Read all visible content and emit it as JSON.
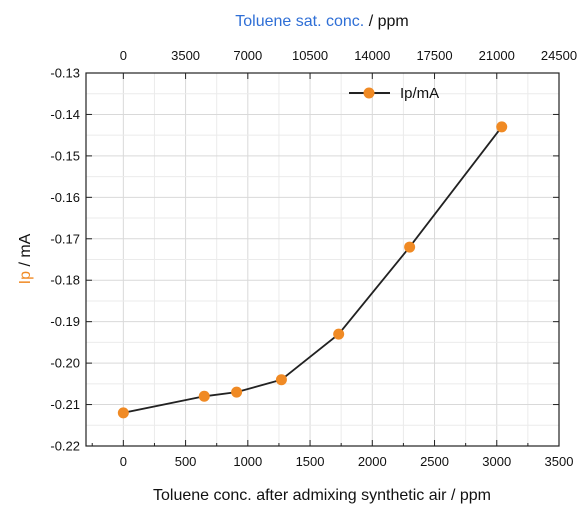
{
  "chart_data": {
    "type": "line",
    "xlabel": "Toluene conc. after admixing synthetic air / ppm",
    "ylabel_prefix": "Ip",
    "ylabel_suffix": " / mA",
    "top_xlabel_prefix": "Toluene sat. conc.",
    "top_xlabel_suffix": " / ppm",
    "xlim": [
      -300,
      3500
    ],
    "ylim": [
      -0.22,
      -0.13
    ],
    "top_xlim": [
      -2100,
      24500
    ],
    "x_ticks": [
      "0",
      "500",
      "1000",
      "1500",
      "2000",
      "2500",
      "3000",
      "3500"
    ],
    "y_ticks": [
      "-0.13",
      "-0.14",
      "-0.15",
      "-0.16",
      "-0.17",
      "-0.18",
      "-0.19",
      "-0.20",
      "-0.21",
      "-0.22"
    ],
    "top_x_ticks": [
      "0",
      "3500",
      "7000",
      "10500",
      "14000",
      "17500",
      "21000",
      "24500"
    ],
    "grid": true,
    "legend_position": "top-right",
    "series": [
      {
        "name": "Ip/mA",
        "color": "#f08a24",
        "x": [
          0,
          650,
          910,
          1270,
          1730,
          2300,
          3040
        ],
        "y": [
          -0.212,
          -0.208,
          -0.207,
          -0.204,
          -0.193,
          -0.172,
          -0.143
        ]
      }
    ],
    "colors": {
      "blue_label": "#2f6fd6",
      "orange_label": "#f08a24",
      "line": "#222222"
    }
  }
}
